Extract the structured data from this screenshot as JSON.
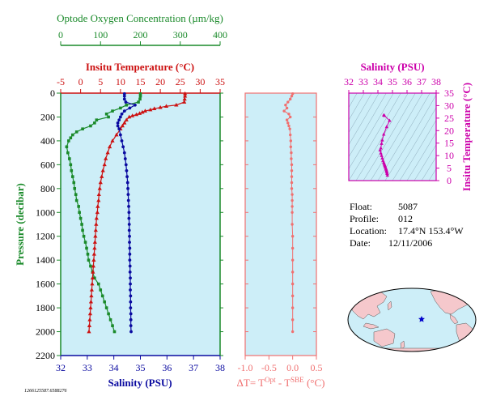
{
  "colors": {
    "oxygen": "#1a8a2a",
    "temperature": "#cc1111",
    "salinity": "#0a0aa0",
    "magenta": "#cc00aa",
    "delta": "#f07070",
    "panel_bg": "#cdeef8",
    "land": "#f5c8cc",
    "ocean": "#cdeef8",
    "float_marker": "#0000cc"
  },
  "labels": {
    "oxygen_axis": "Optode Oxygen Concentration (µm/kg)",
    "temperature_axis": "Insitu Temperature (°C)",
    "salinity_axis": "Salinity (PSU)",
    "pressure_axis": "Pressure (decibar)",
    "delta_axis_prefix": "ΔT= T",
    "delta_axis_sup1": "Opt",
    "delta_axis_mid": " - T",
    "delta_axis_sup2": "SBE",
    "delta_axis_suffix": " (°C)",
    "ts_salinity_axis": "Salinity (PSU)",
    "ts_temperature_axis": "Insitu Temperature (°C)",
    "footnote": "1266125587.6588276"
  },
  "info": {
    "float_label": "Float:",
    "float_value": "5087",
    "profile_label": "Profile:",
    "profile_value": "012",
    "location_label": "Location:",
    "location_value": "17.4°N  153.4°W",
    "date_label": "Date:",
    "date_value": "12/11/2006"
  },
  "chart_data": [
    {
      "type": "line",
      "name": "profile",
      "y_axis": {
        "range": [
          0,
          2200
        ],
        "ticks": [
          0,
          200,
          400,
          600,
          800,
          1000,
          1200,
          1400,
          1600,
          1800,
          2000,
          2200
        ],
        "inverted": true
      },
      "axes": {
        "oxygen": {
          "range": [
            0,
            400
          ],
          "ticks": [
            0,
            100,
            200,
            300,
            400
          ]
        },
        "temperature": {
          "range": [
            -5,
            35
          ],
          "ticks": [
            -5,
            0,
            5,
            10,
            15,
            20,
            25,
            30,
            35
          ]
        },
        "salinity": {
          "range": [
            32,
            38
          ],
          "ticks": [
            32,
            33,
            34,
            35,
            36,
            37,
            38
          ]
        }
      },
      "series": [
        {
          "key": "oxygen",
          "pressure": [
            5,
            25,
            50,
            75,
            100,
            125,
            150,
            175,
            200,
            225,
            250,
            275,
            300,
            325,
            350,
            375,
            400,
            450,
            500,
            550,
            600,
            650,
            700,
            750,
            800,
            850,
            900,
            950,
            1000,
            1050,
            1100,
            1150,
            1200,
            1250,
            1300,
            1350,
            1400,
            1450,
            1500,
            1550,
            1600,
            1650,
            1700,
            1750,
            1800,
            1850,
            1900,
            1950,
            2000
          ],
          "values": [
            200,
            200,
            199,
            195,
            165,
            150,
            130,
            115,
            120,
            90,
            85,
            75,
            55,
            40,
            30,
            25,
            20,
            15,
            18,
            22,
            25,
            27,
            30,
            33,
            35,
            38,
            40,
            45,
            47,
            50,
            53,
            55,
            58,
            62,
            65,
            68,
            70,
            75,
            80,
            85,
            95,
            100,
            105,
            110,
            115,
            120,
            125,
            130,
            135
          ]
        },
        {
          "key": "temperature",
          "pressure": [
            5,
            25,
            50,
            75,
            100,
            110,
            120,
            130,
            140,
            150,
            160,
            170,
            180,
            190,
            200,
            225,
            250,
            275,
            300,
            350,
            400,
            450,
            500,
            550,
            600,
            650,
            700,
            750,
            800,
            850,
            900,
            950,
            1000,
            1050,
            1100,
            1150,
            1200,
            1250,
            1300,
            1350,
            1400,
            1450,
            1500,
            1550,
            1600,
            1650,
            1700,
            1750,
            1800,
            1850,
            1900,
            1950,
            2000
          ],
          "values": [
            26.2,
            26.2,
            26.1,
            26.0,
            24.0,
            21.5,
            20.0,
            18.5,
            17.5,
            16.2,
            15.5,
            14.8,
            14.0,
            13.0,
            12.2,
            11.5,
            11.0,
            10.5,
            10.0,
            9.0,
            8.0,
            7.3,
            6.8,
            6.3,
            6.0,
            5.6,
            5.3,
            5.0,
            4.8,
            4.6,
            4.5,
            4.3,
            4.2,
            4.0,
            3.9,
            3.8,
            3.7,
            3.6,
            3.5,
            3.4,
            3.3,
            3.2,
            3.1,
            3.0,
            2.9,
            2.8,
            2.7,
            2.6,
            2.5,
            2.4,
            2.3,
            2.2,
            2.1
          ]
        },
        {
          "key": "salinity",
          "pressure": [
            5,
            25,
            50,
            75,
            100,
            125,
            150,
            175,
            200,
            225,
            250,
            275,
            300,
            350,
            400,
            450,
            500,
            550,
            600,
            650,
            700,
            750,
            800,
            850,
            900,
            950,
            1000,
            1050,
            1100,
            1150,
            1200,
            1250,
            1300,
            1350,
            1400,
            1450,
            1500,
            1550,
            1600,
            1650,
            1700,
            1750,
            1800,
            1850,
            1900,
            1950,
            2000
          ],
          "values": [
            34.4,
            34.4,
            34.4,
            34.45,
            34.8,
            34.6,
            34.4,
            34.3,
            34.25,
            34.2,
            34.15,
            34.15,
            34.2,
            34.25,
            34.3,
            34.35,
            34.4,
            34.43,
            34.46,
            34.48,
            34.5,
            34.52,
            34.53,
            34.54,
            34.55,
            34.56,
            34.57,
            34.57,
            34.58,
            34.58,
            34.59,
            34.59,
            34.6,
            34.6,
            34.6,
            34.61,
            34.61,
            34.62,
            34.62,
            34.62,
            34.63,
            34.63,
            34.63,
            34.64,
            34.64,
            34.64,
            34.65
          ]
        }
      ]
    },
    {
      "type": "line",
      "name": "delta_t",
      "x_axis": {
        "range": [
          -1.0,
          0.5
        ],
        "ticks": [
          -1.0,
          -0.5,
          0.0,
          0.5
        ],
        "tick_labels": [
          "-1.0",
          "-0.5",
          "0.0",
          "0.5"
        ]
      },
      "y_axis": {
        "range": [
          0,
          2200
        ],
        "inverted": true
      },
      "pressure": [
        5,
        25,
        50,
        75,
        100,
        125,
        150,
        175,
        200,
        225,
        250,
        275,
        300,
        350,
        400,
        450,
        500,
        550,
        600,
        650,
        700,
        750,
        800,
        850,
        900,
        950,
        1000,
        1100,
        1200,
        1300,
        1400,
        1500,
        1600,
        1700,
        1800,
        1900,
        2000
      ],
      "values": [
        0.0,
        -0.02,
        -0.05,
        -0.1,
        -0.15,
        -0.12,
        -0.18,
        -0.08,
        -0.05,
        -0.12,
        -0.1,
        -0.08,
        -0.06,
        -0.05,
        -0.04,
        -0.04,
        -0.03,
        -0.03,
        -0.02,
        -0.02,
        -0.02,
        -0.02,
        -0.02,
        -0.01,
        -0.01,
        -0.01,
        -0.01,
        -0.01,
        0.0,
        0.0,
        0.0,
        0.0,
        0.0,
        0.0,
        0.0,
        0.0,
        0.0
      ]
    },
    {
      "type": "scatter",
      "name": "ts_diagram",
      "x_axis": {
        "range": [
          32,
          38
        ],
        "ticks": [
          32,
          33,
          34,
          35,
          36,
          37,
          38
        ]
      },
      "y_axis": {
        "range": [
          0,
          35
        ],
        "ticks": [
          0,
          5,
          10,
          15,
          20,
          25,
          30,
          35
        ]
      },
      "salinity": [
        34.4,
        34.45,
        34.8,
        34.6,
        34.4,
        34.3,
        34.25,
        34.2,
        34.15,
        34.2,
        34.25,
        34.3,
        34.35,
        34.4,
        34.43,
        34.46,
        34.48,
        34.5,
        34.52,
        34.55,
        34.57,
        34.59,
        34.6,
        34.62,
        34.63,
        34.65
      ],
      "temperature": [
        26.2,
        26.0,
        24.0,
        21.5,
        18.5,
        16.2,
        14.8,
        13.0,
        12.2,
        11.0,
        10.0,
        9.0,
        8.0,
        7.3,
        6.8,
        6.3,
        6.0,
        5.6,
        5.3,
        4.8,
        4.5,
        4.0,
        3.7,
        3.3,
        2.8,
        2.1
      ]
    }
  ],
  "map": {
    "float_marker": "star"
  }
}
